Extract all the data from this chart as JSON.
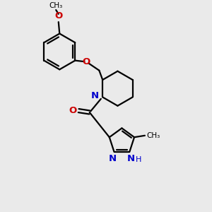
{
  "bg_color": "#eaeaea",
  "bond_color": "#000000",
  "o_color": "#cc0000",
  "n_color": "#0000cc",
  "line_width": 1.6,
  "font_size": 8.5,
  "fig_size": [
    3.0,
    3.0
  ],
  "dpi": 100,
  "xlim": [
    0,
    10
  ],
  "ylim": [
    0,
    10
  ]
}
